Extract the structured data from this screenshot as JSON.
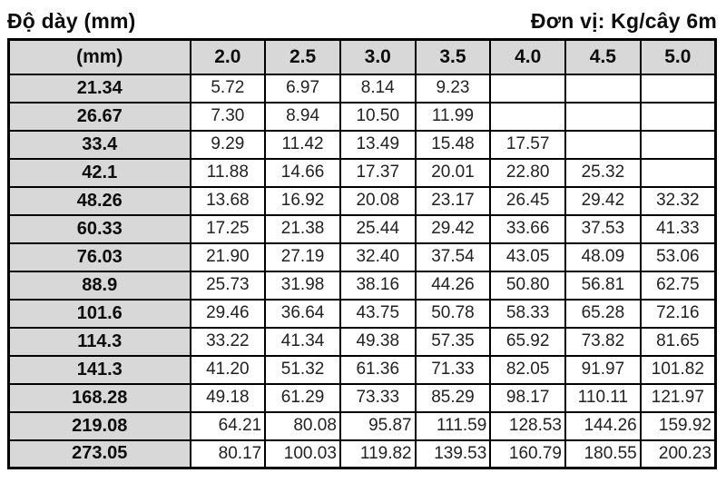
{
  "header": {
    "title_left": "Độ dày (mm)",
    "title_right": "Đơn vị: Kg/cây 6m"
  },
  "table": {
    "corner_label": "(mm)",
    "thickness_headers": [
      "2.0",
      "2.5",
      "3.0",
      "3.5",
      "4.0",
      "4.5",
      "5.0"
    ],
    "rows": [
      {
        "diameter": "21.34",
        "values": [
          "5.72",
          "6.97",
          "8.14",
          "9.23",
          "",
          "",
          ""
        ]
      },
      {
        "diameter": "26.67",
        "values": [
          "7.30",
          "8.94",
          "10.50",
          "11.99",
          "",
          "",
          ""
        ]
      },
      {
        "diameter": "33.4",
        "values": [
          "9.29",
          "11.42",
          "13.49",
          "15.48",
          "17.57",
          "",
          ""
        ]
      },
      {
        "diameter": "42.1",
        "values": [
          "11.88",
          "14.66",
          "17.37",
          "20.01",
          "22.80",
          "25.32",
          ""
        ]
      },
      {
        "diameter": "48.26",
        "values": [
          "13.68",
          "16.92",
          "20.08",
          "23.17",
          "26.45",
          "29.42",
          "32.32"
        ]
      },
      {
        "diameter": "60.33",
        "values": [
          "17.25",
          "21.38",
          "25.44",
          "29.42",
          "33.66",
          "37.53",
          "41.33"
        ]
      },
      {
        "diameter": "76.03",
        "values": [
          "21.90",
          "27.19",
          "32.40",
          "37.54",
          "43.05",
          "48.09",
          "53.06"
        ]
      },
      {
        "diameter": "88.9",
        "values": [
          "25.73",
          "31.98",
          "38.16",
          "44.26",
          "50.80",
          "56.81",
          "62.75"
        ]
      },
      {
        "diameter": "101.6",
        "values": [
          "29.46",
          "36.64",
          "43.75",
          "50.78",
          "58.33",
          "65.28",
          "72.16"
        ]
      },
      {
        "diameter": "114.3",
        "values": [
          "33.22",
          "41.34",
          "49.38",
          "57.35",
          "65.92",
          "73.82",
          "81.65"
        ]
      },
      {
        "diameter": "141.3",
        "values": [
          "41.20",
          "51.32",
          "61.36",
          "71.33",
          "82.05",
          "91.97",
          "101.82"
        ]
      },
      {
        "diameter": "168.28",
        "values": [
          "49.18",
          "61.29",
          "73.33",
          "85.29",
          "98.17",
          "110.11",
          "121.97"
        ]
      },
      {
        "diameter": "219.08",
        "values": [
          "64.21",
          "80.08",
          "95.87",
          "111.59",
          "128.53",
          "144.26",
          "159.92"
        ]
      },
      {
        "diameter": "273.05",
        "values": [
          "80.17",
          "100.03",
          "119.82",
          "139.53",
          "160.79",
          "180.55",
          "200.23"
        ]
      }
    ]
  },
  "colors": {
    "header_cell_bg": "#d8d8d8",
    "data_cell_bg": "#ffffff",
    "border": "#000000",
    "text": "#111111"
  }
}
